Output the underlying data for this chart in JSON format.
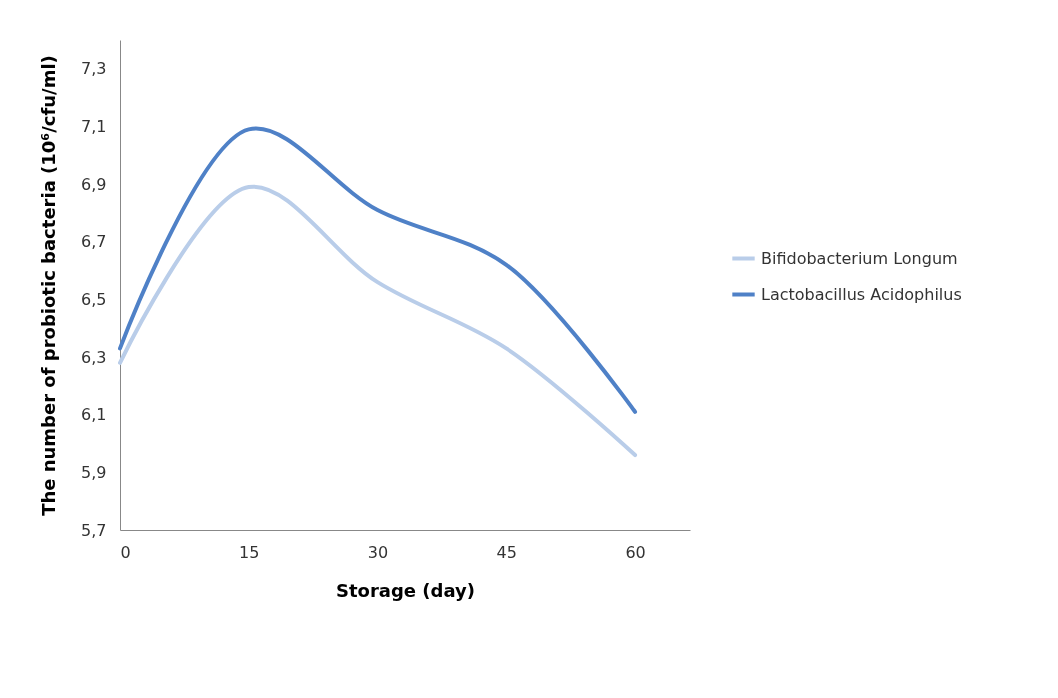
{
  "chart_data": {
    "type": "line",
    "xlabel": "Storage (day)",
    "ylabel": "The number of probiotic bacteria (10⁶/cfu/ml)",
    "x": [
      0,
      15,
      30,
      45,
      60
    ],
    "series": [
      {
        "name": "Bifidobacterium Longum",
        "color": "#b9cde9",
        "values": [
          6.28,
          6.89,
          6.56,
          6.33,
          5.96
        ]
      },
      {
        "name": "Lactobacillus Acidophilus",
        "color": "#4f81c7",
        "values": [
          6.33,
          7.09,
          6.81,
          6.62,
          6.11
        ]
      }
    ],
    "xlim": [
      0,
      66.4
    ],
    "xticks": [
      0,
      15,
      30,
      45,
      60
    ],
    "ylim": [
      5.7,
      7.4
    ],
    "yticks": [
      {
        "value": 5.7,
        "label": "5,7"
      },
      {
        "value": 5.9,
        "label": "5,9"
      },
      {
        "value": 6.1,
        "label": "6,1"
      },
      {
        "value": 6.3,
        "label": "6,3"
      },
      {
        "value": 6.5,
        "label": "6,5"
      },
      {
        "value": 6.7,
        "label": "6,7"
      },
      {
        "value": 6.9,
        "label": "6,9"
      },
      {
        "value": 7.1,
        "label": "7,1"
      },
      {
        "value": 7.3,
        "label": "7,3"
      }
    ],
    "grid": false,
    "legend": "right",
    "marker": "none",
    "line_style": "solid"
  }
}
